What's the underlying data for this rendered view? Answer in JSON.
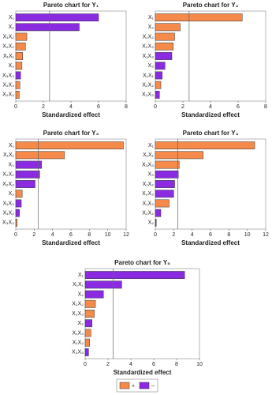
{
  "chart_data": [
    {
      "type": "bar",
      "orientation": "horizontal",
      "title": "Pareto chart for Y₁",
      "x_label": "Standardized effect",
      "categories": [
        "X₁",
        "X₂",
        "X₁X₂",
        "X₂X₂",
        "X₁X₁",
        "X₃",
        "X₃X₃",
        "X₁X₃",
        "X₂X₃"
      ],
      "values": [
        6.0,
        4.6,
        0.8,
        0.7,
        0.5,
        0.45,
        0.35,
        0.3,
        0.25
      ],
      "colors": [
        "#8a2be2",
        "#8a2be2",
        "#f58a4b",
        "#f58a4b",
        "#f58a4b",
        "#f58a4b",
        "#8a2be2",
        "#f58a4b",
        "#f58a4b"
      ],
      "reference_line": 2.45,
      "xlim": [
        0,
        8
      ],
      "xticks": [
        0,
        2,
        4,
        6,
        8
      ]
    },
    {
      "type": "bar",
      "orientation": "horizontal",
      "title": "Pareto chart for Y₂",
      "x_label": "Standardized effect",
      "categories": [
        "X₁",
        "X₂",
        "X₁X₂",
        "X₂X₃",
        "X₁X₃",
        "X₃",
        "X₁X₁",
        "X₂X₂",
        "X₃X₃"
      ],
      "values": [
        6.3,
        1.8,
        1.4,
        1.3,
        1.2,
        0.7,
        0.5,
        0.4,
        0.3
      ],
      "colors": [
        "#f58a4b",
        "#f58a4b",
        "#f58a4b",
        "#f58a4b",
        "#8a2be2",
        "#8a2be2",
        "#8a2be2",
        "#f58a4b",
        "#8a2be2"
      ],
      "reference_line": 2.45,
      "xlim": [
        0,
        8
      ],
      "xticks": [
        0,
        2,
        4,
        6,
        8
      ]
    },
    {
      "type": "bar",
      "orientation": "horizontal",
      "title": "Pareto chart for Y₃",
      "x_label": "Standardized effect",
      "categories": [
        "X₁",
        "X₁X₁",
        "X₃",
        "X₂X₂",
        "X₂X₃",
        "X₂",
        "X₁X₃",
        "X₁X₂",
        "X₃X₃"
      ],
      "values": [
        11.7,
        5.3,
        2.8,
        2.6,
        2.1,
        0.7,
        0.6,
        0.4,
        0.15
      ],
      "colors": [
        "#f58a4b",
        "#f58a4b",
        "#8a2be2",
        "#8a2be2",
        "#8a2be2",
        "#f58a4b",
        "#8a2be2",
        "#8a2be2",
        "#f58a4b"
      ],
      "reference_line": 2.45,
      "xlim": [
        0,
        12
      ],
      "xticks": [
        0,
        2,
        4,
        6,
        8,
        10,
        12
      ]
    },
    {
      "type": "bar",
      "orientation": "horizontal",
      "title": "Pareto chart for Y₄",
      "x_label": "Standardized effect",
      "categories": [
        "X₁",
        "X₁X₁",
        "X₃X₃",
        "X₃",
        "X₁X₂",
        "X₂X₃",
        "X₁X₃",
        "X₂X₂",
        "X₂"
      ],
      "values": [
        10.8,
        5.2,
        2.6,
        2.5,
        2.1,
        2.0,
        1.5,
        0.6,
        0.1
      ],
      "colors": [
        "#f58a4b",
        "#f58a4b",
        "#f58a4b",
        "#8a2be2",
        "#8a2be2",
        "#8a2be2",
        "#f58a4b",
        "#8a2be2",
        "#8a2be2"
      ],
      "reference_line": 2.45,
      "xlim": [
        0,
        12
      ],
      "xticks": [
        0,
        2,
        4,
        6,
        8,
        10,
        12
      ]
    },
    {
      "type": "bar",
      "orientation": "horizontal",
      "title": "Pareto chart for Y₅",
      "x_label": "Standardized effect",
      "categories": [
        "X₁",
        "X₁X₁",
        "X₂",
        "X₂X₂",
        "X₂X₃",
        "X₃",
        "X₁X₃",
        "X₁X₂",
        "X₃X₃"
      ],
      "values": [
        8.7,
        3.2,
        1.6,
        0.9,
        0.8,
        0.6,
        0.5,
        0.4,
        0.3
      ],
      "colors": [
        "#8a2be2",
        "#8a2be2",
        "#8a2be2",
        "#f58a4b",
        "#f58a4b",
        "#8a2be2",
        "#f58a4b",
        "#f58a4b",
        "#8a2be2"
      ],
      "reference_line": 2.45,
      "xlim": [
        0,
        10
      ],
      "xticks": [
        0,
        2,
        4,
        6,
        8,
        10
      ]
    }
  ],
  "legend": [
    {
      "label": "+",
      "color": "#f58a4b"
    },
    {
      "label": "–",
      "color": "#8a2be2"
    }
  ]
}
